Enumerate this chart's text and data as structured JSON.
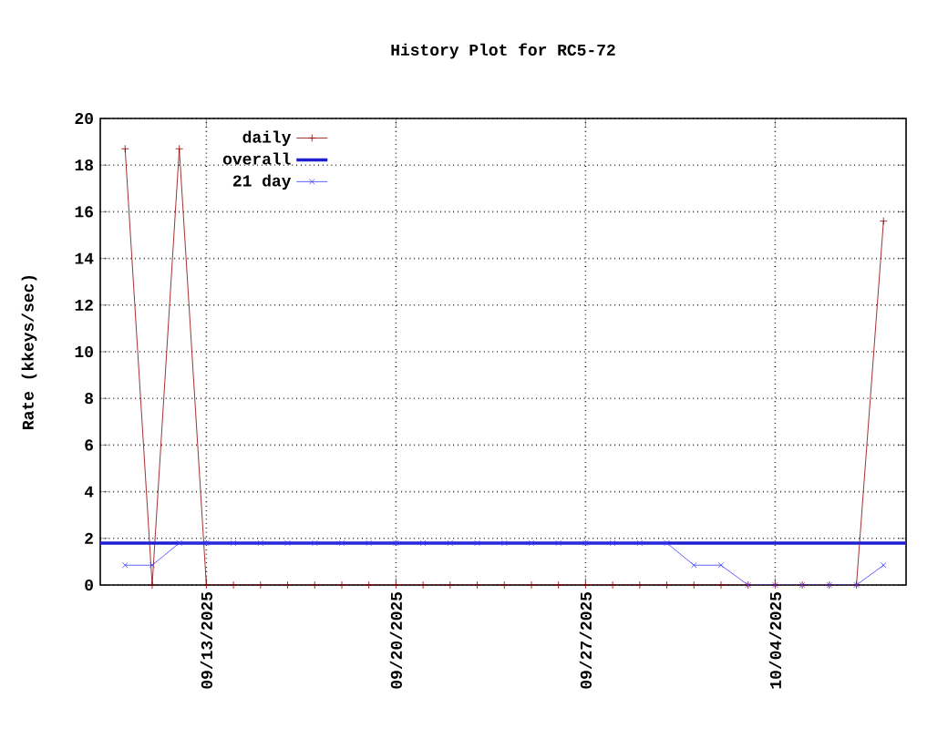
{
  "chart_data": {
    "type": "line",
    "title": "History Plot for RC5-72",
    "ylabel": "Rate (kkeys/sec)",
    "xlim": [
      "2025-09-09T02:00",
      "2025-10-08T20:00"
    ],
    "xticks": [
      {
        "value": "2025-09-13",
        "label": "09/13/2025"
      },
      {
        "value": "2025-09-20",
        "label": "09/20/2025"
      },
      {
        "value": "2025-09-27",
        "label": "09/27/2025"
      },
      {
        "value": "2025-10-04",
        "label": "10/04/2025"
      }
    ],
    "ylim": [
      0,
      20
    ],
    "yticks": [
      0,
      2,
      4,
      6,
      8,
      10,
      12,
      14,
      16,
      18,
      20
    ],
    "grid": true,
    "legend": "top left",
    "line_style": "solid",
    "x": [
      "2025-09-10",
      "2025-09-11",
      "2025-09-12",
      "2025-09-13",
      "2025-09-14",
      "2025-09-15",
      "2025-09-16",
      "2025-09-17",
      "2025-09-18",
      "2025-09-19",
      "2025-09-20",
      "2025-09-21",
      "2025-09-22",
      "2025-09-23",
      "2025-09-24",
      "2025-09-25",
      "2025-09-26",
      "2025-09-27",
      "2025-09-28",
      "2025-09-29",
      "2025-09-30",
      "2025-10-01",
      "2025-10-02",
      "2025-10-03",
      "2025-10-04",
      "2025-10-05",
      "2025-10-06",
      "2025-10-07",
      "2025-10-08"
    ],
    "series": [
      {
        "name": "daily",
        "color": "#8b0000",
        "marker": "plus",
        "values": [
          18.7,
          0,
          18.7,
          0,
          0,
          0,
          0,
          0,
          0,
          0,
          0,
          0,
          0,
          0,
          0,
          0,
          0,
          0,
          0,
          0,
          0,
          0,
          0,
          0,
          0,
          0,
          0,
          0,
          15.6
        ]
      },
      {
        "name": "overall",
        "color": "#2020d0",
        "marker": "none",
        "x": [
          "2025-09-09T02:00",
          "2025-10-08T20:00"
        ],
        "values": [
          1.8,
          1.8
        ]
      },
      {
        "name": "21 day",
        "color": "#3a3aff",
        "marker": "cross",
        "values": [
          0.85,
          0.85,
          1.8,
          1.8,
          1.8,
          1.8,
          1.8,
          1.8,
          1.8,
          1.8,
          1.8,
          1.8,
          1.8,
          1.8,
          1.8,
          1.8,
          1.8,
          1.8,
          1.8,
          1.8,
          1.8,
          0.85,
          0.85,
          0,
          0,
          0,
          0,
          0,
          0.85
        ]
      }
    ]
  }
}
